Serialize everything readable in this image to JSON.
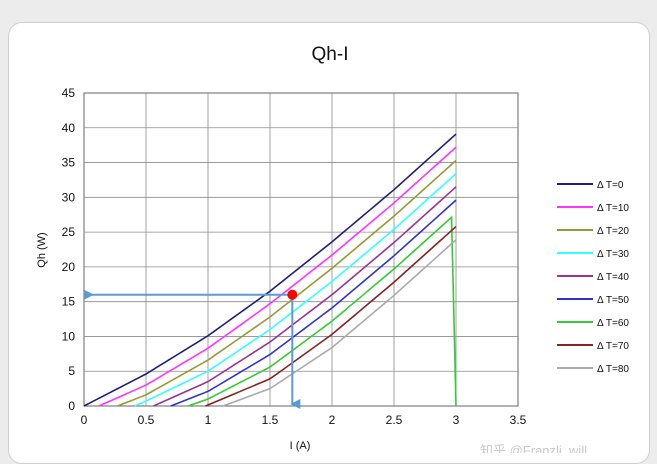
{
  "chart_data": {
    "type": "line",
    "title": "Qh-I",
    "xlabel": "I (A)",
    "ylabel": "Qh (W)",
    "xlim": [
      0,
      3.5
    ],
    "ylim": [
      0,
      45
    ],
    "x_ticks": [
      "0",
      "0.5",
      "1",
      "1.5",
      "2",
      "2.5",
      "3",
      "3.5"
    ],
    "y_ticks": [
      "0",
      "5",
      "10",
      "15",
      "20",
      "25",
      "30",
      "35",
      "40",
      "45"
    ],
    "grid": true,
    "legend_position": "right",
    "series": [
      {
        "name": "Δ T=0",
        "color": "#1f1f7a",
        "points": [
          [
            0,
            0
          ],
          [
            0.5,
            4.6
          ],
          [
            1,
            10.1
          ],
          [
            1.5,
            16.5
          ],
          [
            2,
            23.6
          ],
          [
            2.5,
            31.1
          ],
          [
            3,
            39.1
          ]
        ]
      },
      {
        "name": "Δ T=10",
        "color": "#ff33ff",
        "points": [
          [
            0.12,
            0
          ],
          [
            0.5,
            3.0
          ],
          [
            1,
            8.3
          ],
          [
            1.5,
            14.7
          ],
          [
            2,
            21.7
          ],
          [
            2.5,
            29.2
          ],
          [
            3,
            37.2
          ]
        ]
      },
      {
        "name": "Δ T=20",
        "color": "#999933",
        "points": [
          [
            0.27,
            0
          ],
          [
            0.5,
            1.6
          ],
          [
            1,
            6.6
          ],
          [
            1.5,
            12.8
          ],
          [
            2,
            19.8
          ],
          [
            2.5,
            27.3
          ],
          [
            3,
            35.3
          ]
        ]
      },
      {
        "name": "Δ T=30",
        "color": "#33ffff",
        "points": [
          [
            0.41,
            0
          ],
          [
            0.5,
            0.7
          ],
          [
            1,
            5.0
          ],
          [
            1.5,
            11.0
          ],
          [
            2,
            17.9
          ],
          [
            2.5,
            25.4
          ],
          [
            3,
            33.4
          ]
        ]
      },
      {
        "name": "Δ T=40",
        "color": "#993399",
        "points": [
          [
            0.56,
            0
          ],
          [
            1,
            3.5
          ],
          [
            1.5,
            9.2
          ],
          [
            2,
            16.0
          ],
          [
            2.5,
            23.5
          ],
          [
            3,
            31.5
          ]
        ]
      },
      {
        "name": "Δ T=50",
        "color": "#3333cc",
        "points": [
          [
            0.7,
            0
          ],
          [
            1,
            2.1
          ],
          [
            1.5,
            7.4
          ],
          [
            2,
            14.1
          ],
          [
            2.5,
            21.6
          ],
          [
            3,
            29.6
          ]
        ]
      },
      {
        "name": "Δ T=60",
        "color": "#33cc33",
        "points": [
          [
            0.84,
            0
          ],
          [
            1,
            1.0
          ],
          [
            1.5,
            5.6
          ],
          [
            2,
            12.2
          ],
          [
            2.5,
            19.7
          ],
          [
            3,
            27.7
          ]
        ]
      },
      {
        "name": "Δ T=70",
        "color": "#882222",
        "points": [
          [
            0.98,
            0
          ],
          [
            1.5,
            3.9
          ],
          [
            2,
            10.3
          ],
          [
            2.5,
            17.8
          ],
          [
            3,
            25.8
          ]
        ]
      },
      {
        "name": "Δ T=80",
        "color": "#aaaaaa",
        "points": [
          [
            1.12,
            0
          ],
          [
            1.5,
            2.5
          ],
          [
            2,
            8.4
          ],
          [
            2.5,
            15.9
          ],
          [
            3,
            23.9
          ]
        ]
      }
    ],
    "annotations": {
      "point": {
        "x": 1.68,
        "y": 16,
        "color": "#ff0000"
      },
      "arrow_color": "#5b9bd5",
      "arrow_to_y_axis_at": 16,
      "arrow_down_to_x": 1.68
    }
  },
  "watermark": "知乎 @Franzli_will"
}
